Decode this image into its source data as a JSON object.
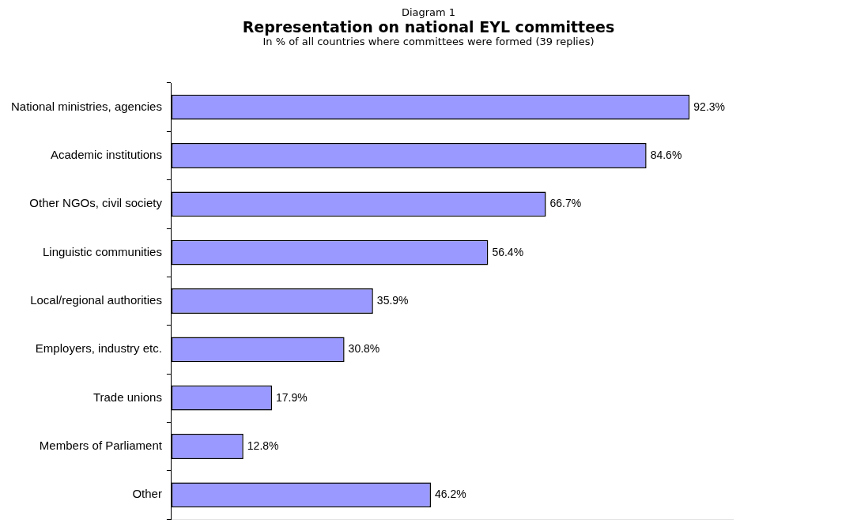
{
  "chart_data": {
    "type": "bar",
    "orientation": "horizontal",
    "annotations": [
      "Diagram 1"
    ],
    "title": "Representation on national EYL committees",
    "subtitle": "In % of all countries where committees were formed (39 replies)",
    "categories": [
      "National ministries, agencies",
      "Academic institutions",
      "Other NGOs, civil society",
      "Linguistic communities",
      "Local/regional authorities",
      "Employers, industry etc.",
      "Trade unions",
      "Members of Parliament",
      "Other"
    ],
    "values": [
      92.3,
      84.6,
      66.7,
      56.4,
      35.9,
      30.8,
      17.9,
      12.8,
      46.2
    ],
    "value_labels": [
      "92.3%",
      "84.6%",
      "66.7%",
      "56.4%",
      "35.9%",
      "30.8%",
      "17.9%",
      "12.8%",
      "46.2%"
    ],
    "color": "#9999ff"
  }
}
